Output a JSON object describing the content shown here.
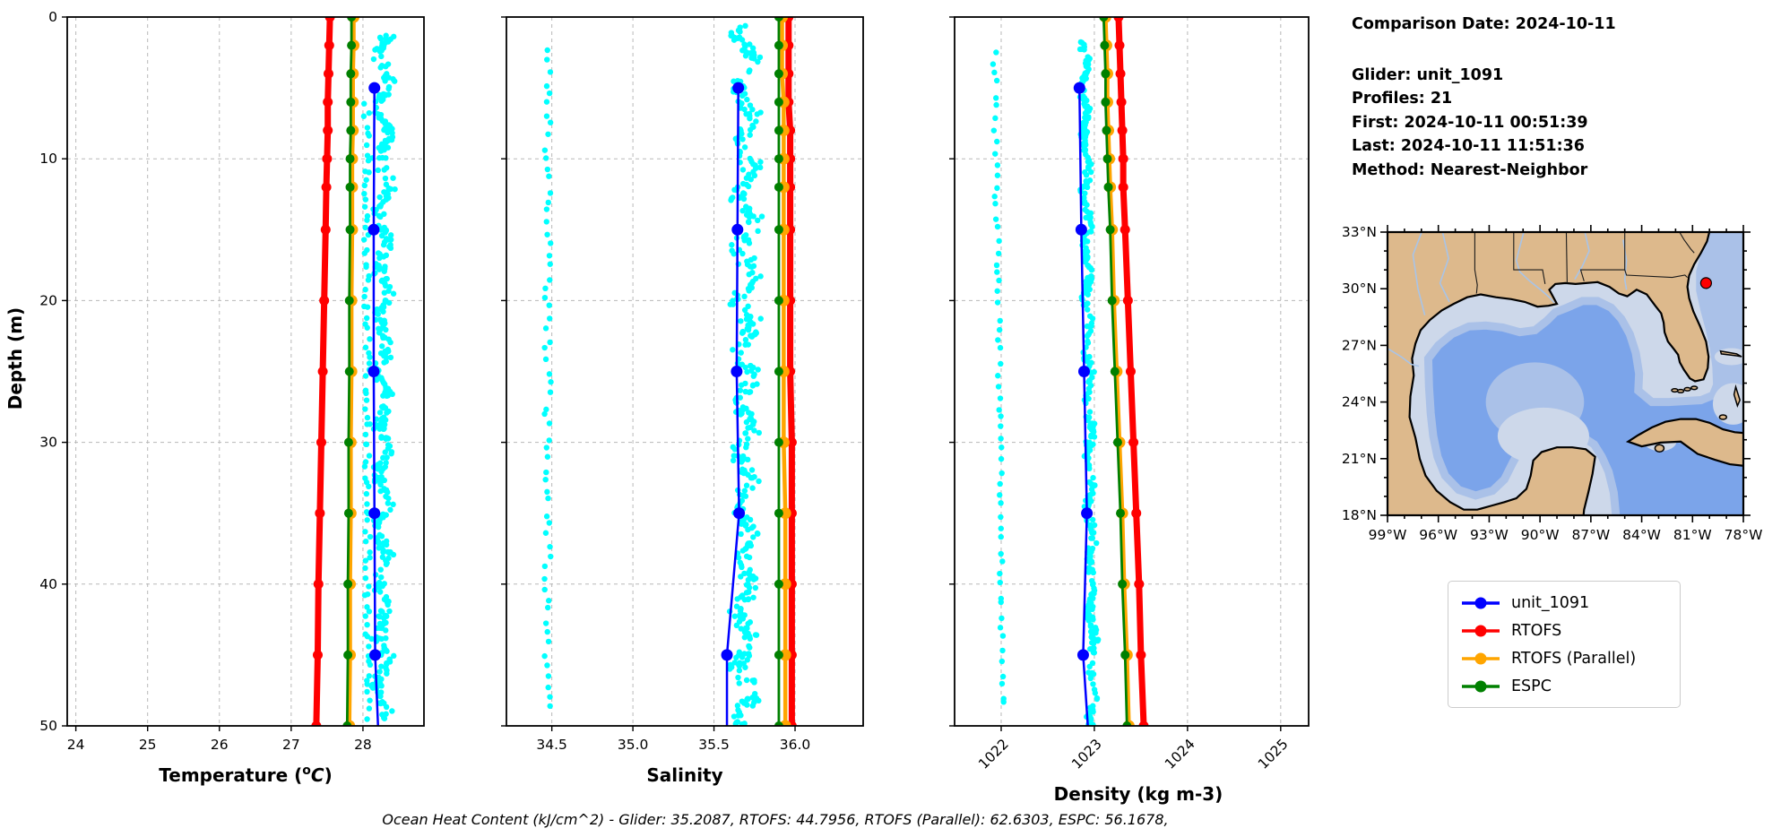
{
  "info": {
    "comparison_date": "Comparison Date: 2024-10-11",
    "glider": "Glider: unit_1091",
    "profiles": "Profiles: 21",
    "first": "First: 2024-10-11 00:51:39",
    "last": "Last: 2024-10-11 11:51:36",
    "method": "Method: Nearest-Neighbor"
  },
  "footer": {
    "ohc_text": "Ocean Heat Content (kJ/cm^2) - Glider: 35.2087,  RTOFS: 44.7956,  RTOFS (Parallel): 62.6303,  ESPC: 56.1678,"
  },
  "legend": {
    "items": [
      {
        "label": "unit_1091",
        "color": "#0000ff"
      },
      {
        "label": "RTOFS",
        "color": "#ff0000"
      },
      {
        "label": "RTOFS (Parallel)",
        "color": "#ffa500"
      },
      {
        "label": "ESPC",
        "color": "#008000"
      }
    ]
  },
  "map": {
    "lat_ticks": [
      {
        "v": 33,
        "label": "33°N"
      },
      {
        "v": 30,
        "label": "30°N"
      },
      {
        "v": 27,
        "label": "27°N"
      },
      {
        "v": 24,
        "label": "24°N"
      },
      {
        "v": 21,
        "label": "21°N"
      },
      {
        "v": 18,
        "label": "18°N"
      }
    ],
    "lon_ticks": [
      {
        "v": 99,
        "label": "99°W"
      },
      {
        "v": 96,
        "label": "96°W"
      },
      {
        "v": 93,
        "label": "93°W"
      },
      {
        "v": 90,
        "label": "90°W"
      },
      {
        "v": 87,
        "label": "87°W"
      },
      {
        "v": 84,
        "label": "84°W"
      },
      {
        "v": 81,
        "label": "81°W"
      },
      {
        "v": 78,
        "label": "78°W"
      }
    ],
    "marker": {
      "lon_w": 80.2,
      "lat": 30.3,
      "color": "#ff0000"
    },
    "colors": {
      "land": "#ddb98c",
      "coast": "#000000",
      "shelf": "#cdd8ea",
      "mid": "#aac1e8",
      "deep": "#7ba4ea",
      "river": "#a8c4e8",
      "border": "#1a1a1a"
    }
  },
  "chart_data": [
    {
      "id": "temperature",
      "type": "line+scatter",
      "xlabel": "Temperature (°C)",
      "xlabel_parts": [
        {
          "t": "Temperature ("
        },
        {
          "t": "o",
          "sup": true
        },
        {
          "t": "C",
          "italic": true
        },
        {
          "t": ")"
        }
      ],
      "xlim": [
        23.88,
        28.85
      ],
      "xticks": [
        {
          "v": 24,
          "label": "24"
        },
        {
          "v": 25,
          "label": "25"
        },
        {
          "v": 26,
          "label": "26"
        },
        {
          "v": 27,
          "label": "27"
        },
        {
          "v": 28,
          "label": "28"
        }
      ],
      "ylabel": "Depth (m)",
      "ylim": [
        0,
        50
      ],
      "yticks": [
        {
          "v": 0,
          "label": "0"
        },
        {
          "v": 10,
          "label": "10"
        },
        {
          "v": 20,
          "label": "20"
        },
        {
          "v": 30,
          "label": "30"
        },
        {
          "v": 40,
          "label": "40"
        },
        {
          "v": 50,
          "label": "50"
        }
      ],
      "show_ytick_labels": true,
      "grid": true,
      "scatter": {
        "name": "glider-raw-points",
        "color": "#00ffff",
        "r": 3.2,
        "bands": [
          {
            "c0": 28.3,
            "c1": 28.27,
            "spread": 0.115,
            "d0": 1.2,
            "d1": 49.5,
            "n": 430,
            "seed": 11
          },
          {
            "c0": 28.05,
            "c1": 28.07,
            "spread": 0.04,
            "d0": 6,
            "d1": 49.5,
            "n": 90,
            "seed": 12,
            "column": true
          }
        ]
      },
      "series": [
        {
          "name": "RTOFS",
          "color": "#ff0000",
          "lw": 7,
          "mr": 5.5,
          "points": [
            [
              27.54,
              0
            ],
            [
              27.53,
              2
            ],
            [
              27.52,
              4
            ],
            [
              27.51,
              6
            ],
            [
              27.51,
              8
            ],
            [
              27.5,
              10
            ],
            [
              27.49,
              12
            ],
            [
              27.48,
              15
            ],
            [
              27.46,
              20
            ],
            [
              27.44,
              25
            ],
            [
              27.42,
              30
            ],
            [
              27.4,
              35
            ],
            [
              27.38,
              40
            ],
            [
              27.37,
              45
            ],
            [
              27.35,
              50
            ]
          ]
        },
        {
          "name": "RTOFS (Parallel)",
          "color": "#ffa500",
          "lw": 4.5,
          "mr": 6.5,
          "points": [
            [
              27.87,
              0
            ],
            [
              27.87,
              2
            ],
            [
              27.86,
              4
            ],
            [
              27.86,
              6
            ],
            [
              27.86,
              8
            ],
            [
              27.85,
              10
            ],
            [
              27.85,
              12
            ],
            [
              27.85,
              15
            ],
            [
              27.84,
              20
            ],
            [
              27.84,
              25
            ],
            [
              27.83,
              30
            ],
            [
              27.83,
              35
            ],
            [
              27.82,
              40
            ],
            [
              27.82,
              45
            ],
            [
              27.81,
              50
            ]
          ]
        },
        {
          "name": "ESPC",
          "color": "#008000",
          "lw": 2.8,
          "mr": 5,
          "points": [
            [
              27.84,
              0
            ],
            [
              27.84,
              2
            ],
            [
              27.83,
              4
            ],
            [
              27.83,
              6
            ],
            [
              27.83,
              8
            ],
            [
              27.82,
              10
            ],
            [
              27.82,
              12
            ],
            [
              27.82,
              15
            ],
            [
              27.81,
              20
            ],
            [
              27.81,
              25
            ],
            [
              27.8,
              30
            ],
            [
              27.8,
              35
            ],
            [
              27.79,
              40
            ],
            [
              27.79,
              45
            ],
            [
              27.78,
              50
            ]
          ]
        },
        {
          "name": "unit_1091",
          "color": "#0000ff",
          "lw": 2.5,
          "mr": 6.5,
          "marker_depths": [
            5,
            15,
            25,
            35,
            45
          ],
          "points": [
            [
              28.16,
              5
            ],
            [
              28.15,
              15
            ],
            [
              28.15,
              25
            ],
            [
              28.16,
              35
            ],
            [
              28.17,
              45
            ],
            [
              28.21,
              50
            ]
          ]
        }
      ]
    },
    {
      "id": "salinity",
      "type": "line+scatter",
      "xlabel": "Salinity",
      "xlim": [
        34.22,
        36.42
      ],
      "xticks": [
        {
          "v": 34.5,
          "label": "34.5"
        },
        {
          "v": 35.0,
          "label": "35.0"
        },
        {
          "v": 35.5,
          "label": "35.5"
        },
        {
          "v": 36.0,
          "label": "36.0"
        }
      ],
      "ylim": [
        0,
        50
      ],
      "yticks": [
        {
          "v": 0
        },
        {
          "v": 10
        },
        {
          "v": 20
        },
        {
          "v": 30
        },
        {
          "v": 40
        },
        {
          "v": 50
        }
      ],
      "show_ytick_labels": false,
      "grid": true,
      "scatter": {
        "name": "glider-raw-points",
        "color": "#00ffff",
        "r": 3.2,
        "bands": [
          {
            "c0": 34.475,
            "c1": 34.475,
            "spread": 0.02,
            "d0": 2,
            "d1": 49,
            "n": 62,
            "seed": 21,
            "column": true
          },
          {
            "c0": 35.7,
            "c1": 35.69,
            "spread": 0.075,
            "d0": 0.5,
            "d1": 50,
            "n": 420,
            "seed": 22
          }
        ]
      },
      "series": [
        {
          "name": "RTOFS",
          "color": "#ff0000",
          "lw": 7,
          "mr": 5.5,
          "points": [
            [
              35.96,
              0
            ],
            [
              35.96,
              2
            ],
            [
              35.96,
              4
            ],
            [
              35.96,
              6
            ],
            [
              35.97,
              8
            ],
            [
              35.97,
              10
            ],
            [
              35.97,
              12
            ],
            [
              35.97,
              15
            ],
            [
              35.97,
              20
            ],
            [
              35.97,
              25
            ],
            [
              35.98,
              30
            ],
            [
              35.98,
              35
            ],
            [
              35.98,
              40
            ],
            [
              35.98,
              45
            ],
            [
              35.98,
              50
            ]
          ]
        },
        {
          "name": "RTOFS (Parallel)",
          "color": "#ffa500",
          "lw": 4.5,
          "mr": 6.5,
          "points": [
            [
              35.92,
              0
            ],
            [
              35.92,
              2
            ],
            [
              35.92,
              4
            ],
            [
              35.93,
              6
            ],
            [
              35.93,
              8
            ],
            [
              35.93,
              10
            ],
            [
              35.93,
              12
            ],
            [
              35.93,
              15
            ],
            [
              35.93,
              20
            ],
            [
              35.93,
              25
            ],
            [
              35.93,
              30
            ],
            [
              35.94,
              35
            ],
            [
              35.94,
              40
            ],
            [
              35.94,
              45
            ],
            [
              35.94,
              50
            ]
          ]
        },
        {
          "name": "ESPC",
          "color": "#008000",
          "lw": 2.8,
          "mr": 5,
          "points": [
            [
              35.9,
              0
            ],
            [
              35.9,
              2
            ],
            [
              35.9,
              4
            ],
            [
              35.9,
              6
            ],
            [
              35.9,
              8
            ],
            [
              35.9,
              10
            ],
            [
              35.9,
              12
            ],
            [
              35.9,
              15
            ],
            [
              35.9,
              20
            ],
            [
              35.9,
              25
            ],
            [
              35.9,
              30
            ],
            [
              35.9,
              35
            ],
            [
              35.9,
              40
            ],
            [
              35.9,
              45
            ],
            [
              35.9,
              50
            ]
          ]
        },
        {
          "name": "unit_1091",
          "color": "#0000ff",
          "lw": 2.5,
          "mr": 6.5,
          "marker_depths": [
            5,
            15,
            25,
            35,
            45
          ],
          "points": [
            [
              35.65,
              5
            ],
            [
              35.645,
              15
            ],
            [
              35.64,
              25
            ],
            [
              35.655,
              35
            ],
            [
              35.58,
              45
            ],
            [
              35.58,
              50
            ]
          ]
        }
      ]
    },
    {
      "id": "density",
      "type": "line+scatter",
      "xlabel": "Density (kg m-3)",
      "xlim": [
        1021.5,
        1025.3
      ],
      "xtick_rotation": -45,
      "xticks": [
        {
          "v": 1022,
          "label": "1022"
        },
        {
          "v": 1023,
          "label": "1023"
        },
        {
          "v": 1024,
          "label": "1024"
        },
        {
          "v": 1025,
          "label": "1025"
        }
      ],
      "ylim": [
        0,
        50
      ],
      "yticks": [
        {
          "v": 0
        },
        {
          "v": 10
        },
        {
          "v": 20
        },
        {
          "v": 30
        },
        {
          "v": 40
        },
        {
          "v": 50
        }
      ],
      "show_ytick_labels": false,
      "grid": true,
      "scatter": {
        "name": "glider-raw-points",
        "color": "#00ffff",
        "r": 3.2,
        "bands": [
          {
            "c0": 1021.93,
            "c1": 1022.02,
            "spread": 0.022,
            "d0": 2,
            "d1": 49,
            "n": 60,
            "seed": 31,
            "column": true
          },
          {
            "c0": 1022.89,
            "c1": 1022.99,
            "spread": 0.05,
            "d0": 1.5,
            "d1": 50,
            "n": 390,
            "seed": 32
          }
        ]
      },
      "series": [
        {
          "name": "RTOFS",
          "color": "#ff0000",
          "lw": 7,
          "mr": 5.5,
          "points": [
            [
              1023.26,
              0
            ],
            [
              1023.27,
              2
            ],
            [
              1023.28,
              4
            ],
            [
              1023.29,
              6
            ],
            [
              1023.3,
              8
            ],
            [
              1023.31,
              10
            ],
            [
              1023.31,
              12
            ],
            [
              1023.33,
              15
            ],
            [
              1023.36,
              20
            ],
            [
              1023.39,
              25
            ],
            [
              1023.42,
              30
            ],
            [
              1023.45,
              35
            ],
            [
              1023.48,
              40
            ],
            [
              1023.5,
              45
            ],
            [
              1023.53,
              50
            ]
          ]
        },
        {
          "name": "RTOFS (Parallel)",
          "color": "#ffa500",
          "lw": 4.5,
          "mr": 6.5,
          "points": [
            [
              1023.12,
              0
            ],
            [
              1023.13,
              2
            ],
            [
              1023.14,
              4
            ],
            [
              1023.14,
              6
            ],
            [
              1023.15,
              8
            ],
            [
              1023.16,
              10
            ],
            [
              1023.17,
              12
            ],
            [
              1023.19,
              15
            ],
            [
              1023.21,
              20
            ],
            [
              1023.24,
              25
            ],
            [
              1023.27,
              30
            ],
            [
              1023.3,
              35
            ],
            [
              1023.32,
              40
            ],
            [
              1023.35,
              45
            ],
            [
              1023.37,
              50
            ]
          ]
        },
        {
          "name": "ESPC",
          "color": "#008000",
          "lw": 2.8,
          "mr": 5,
          "points": [
            [
              1023.1,
              0
            ],
            [
              1023.11,
              2
            ],
            [
              1023.12,
              4
            ],
            [
              1023.12,
              6
            ],
            [
              1023.13,
              8
            ],
            [
              1023.14,
              10
            ],
            [
              1023.15,
              12
            ],
            [
              1023.17,
              15
            ],
            [
              1023.19,
              20
            ],
            [
              1023.22,
              25
            ],
            [
              1023.25,
              30
            ],
            [
              1023.28,
              35
            ],
            [
              1023.3,
              40
            ],
            [
              1023.33,
              45
            ],
            [
              1023.35,
              50
            ]
          ]
        },
        {
          "name": "unit_1091",
          "color": "#0000ff",
          "lw": 2.5,
          "mr": 6.5,
          "marker_depths": [
            5,
            15,
            25,
            35,
            45
          ],
          "points": [
            [
              1022.84,
              5
            ],
            [
              1022.86,
              15
            ],
            [
              1022.89,
              25
            ],
            [
              1022.92,
              35
            ],
            [
              1022.88,
              45
            ],
            [
              1022.93,
              50
            ]
          ]
        }
      ]
    }
  ]
}
